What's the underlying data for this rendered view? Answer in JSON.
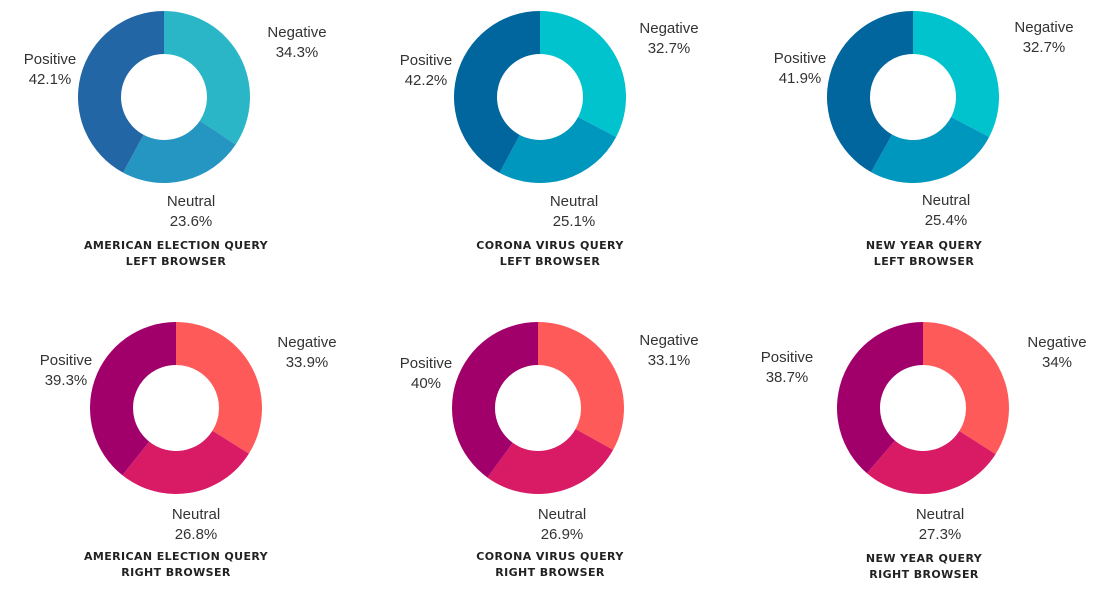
{
  "chart_data": [
    {
      "type": "pie",
      "caption": [
        "AMERICAN ELECTION QUERY",
        "LEFT BROWSER"
      ],
      "categories": [
        "Negative",
        "Neutral",
        "Positive"
      ],
      "values": [
        34.3,
        23.6,
        42.1
      ],
      "value_labels": [
        "34.3%",
        "23.6%",
        "42.1%"
      ],
      "colors": [
        "#2ab6c6",
        "#2596c1",
        "#2366a5"
      ]
    },
    {
      "type": "pie",
      "caption": [
        "CORONA VIRUS QUERY",
        "LEFT BROWSER"
      ],
      "categories": [
        "Negative",
        "Neutral",
        "Positive"
      ],
      "values": [
        32.7,
        25.1,
        42.2
      ],
      "value_labels": [
        "32.7%",
        "25.1%",
        "42.2%"
      ],
      "colors": [
        "#00c3cd",
        "#0097be",
        "#00669d"
      ]
    },
    {
      "type": "pie",
      "caption": [
        "NEW YEAR QUERY",
        "LEFT BROWSER"
      ],
      "categories": [
        "Negative",
        "Neutral",
        "Positive"
      ],
      "values": [
        32.7,
        25.4,
        41.9
      ],
      "value_labels": [
        "32.7%",
        "25.4%",
        "41.9%"
      ],
      "colors": [
        "#00c3cd",
        "#0097be",
        "#00669d"
      ]
    },
    {
      "type": "pie",
      "caption": [
        "AMERICAN ELECTION QUERY",
        "RIGHT BROWSER"
      ],
      "categories": [
        "Negative",
        "Neutral",
        "Positive"
      ],
      "values": [
        33.9,
        26.8,
        39.3
      ],
      "value_labels": [
        "33.9%",
        "26.8%",
        "39.3%"
      ],
      "colors": [
        "#ff5a5a",
        "#d81b64",
        "#a1006b"
      ]
    },
    {
      "type": "pie",
      "caption": [
        "CORONA VIRUS QUERY",
        "RIGHT BROWSER"
      ],
      "categories": [
        "Negative",
        "Neutral",
        "Positive"
      ],
      "values": [
        33.1,
        26.9,
        40
      ],
      "value_labels": [
        "33.1%",
        "26.9%",
        "40%"
      ],
      "colors": [
        "#ff5a5a",
        "#d81b64",
        "#a1006b"
      ]
    },
    {
      "type": "pie",
      "caption": [
        "NEW YEAR QUERY",
        "RIGHT BROWSER"
      ],
      "categories": [
        "Negative",
        "Neutral",
        "Positive"
      ],
      "values": [
        34,
        27.3,
        38.7
      ],
      "value_labels": [
        "34%",
        "27.3%",
        "38.7%"
      ],
      "colors": [
        "#ff5a5a",
        "#d81b64",
        "#a1006b"
      ]
    }
  ]
}
